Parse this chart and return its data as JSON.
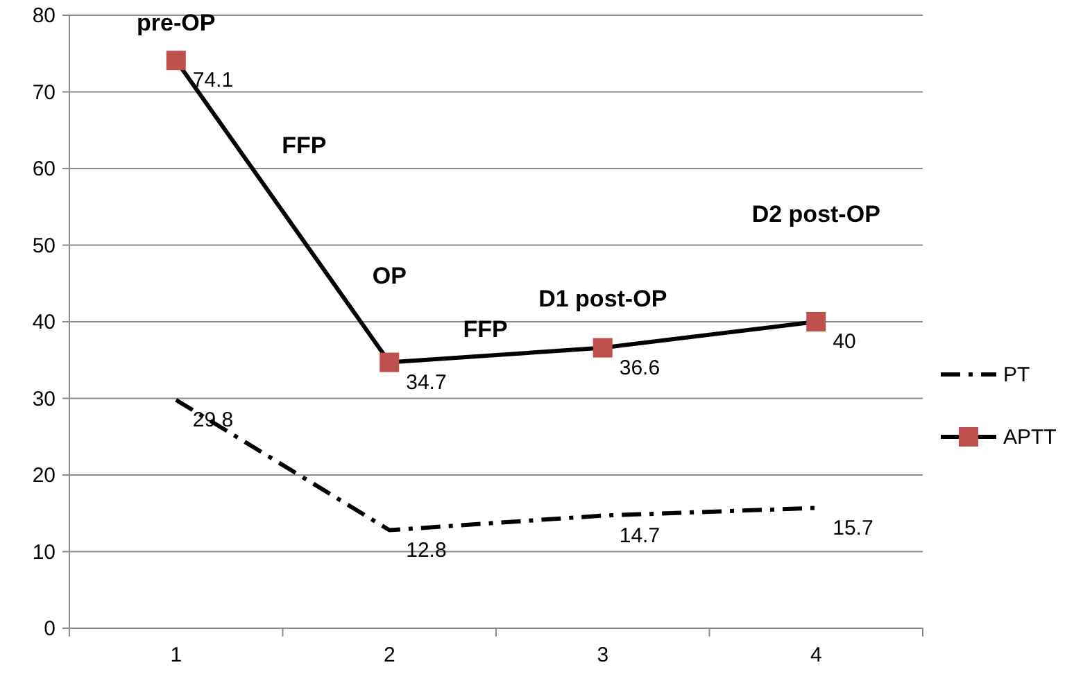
{
  "chart_data": {
    "type": "line",
    "categories": [
      "1",
      "2",
      "3",
      "4"
    ],
    "series": [
      {
        "name": "PT",
        "color": "#000000",
        "values": [
          29.8,
          12.8,
          14.7,
          15.7
        ],
        "marker": "none",
        "line_style": "dashed"
      },
      {
        "name": "APTT",
        "color": "#000000",
        "colors": [
          "#c0504d",
          "#c0504d",
          "#c0504d",
          "#c0504d"
        ],
        "values": [
          74.1,
          34.7,
          36.6,
          40
        ],
        "marker": "square",
        "line_style": "solid"
      }
    ],
    "ylim": [
      0,
      80
    ],
    "yticks": [
      0,
      10,
      20,
      30,
      40,
      50,
      60,
      70,
      80
    ],
    "grid": "y",
    "legend": "right",
    "data_labels": true,
    "annotations": [
      "pre-OP",
      "FFP",
      "OP",
      "FFP",
      "D1 post-OP",
      "D2 post-OP"
    ]
  }
}
